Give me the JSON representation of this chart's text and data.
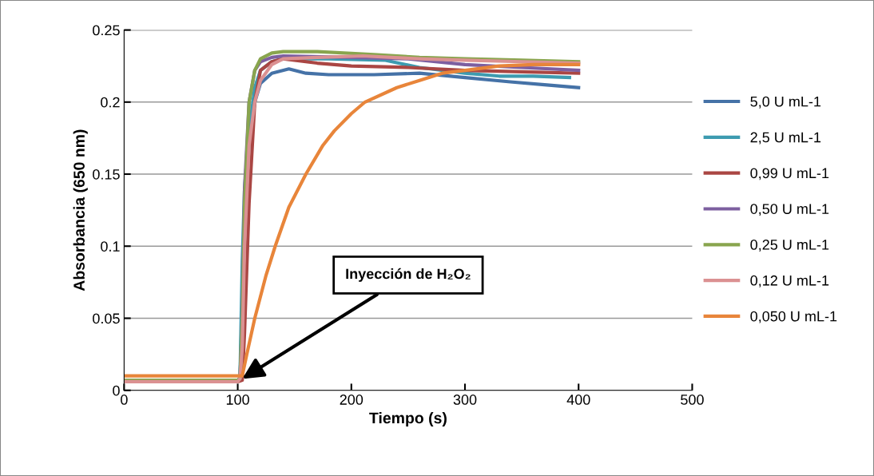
{
  "chart_data": {
    "type": "line",
    "xlabel": "Tiempo (s)",
    "ylabel": "Absorbancia (650 nm)",
    "xlim": [
      0,
      500
    ],
    "xticks": [
      0,
      100,
      200,
      300,
      400,
      500
    ],
    "ylim": [
      0,
      0.25
    ],
    "yticks": [
      0,
      0.05,
      0.1,
      0.15,
      0.2,
      0.25
    ],
    "grid": "y",
    "legend": "right",
    "marker": "none",
    "line_style": "solid",
    "annotations": [
      {
        "text": "Inyección de H₂O₂",
        "x": 104,
        "y": 0.008
      }
    ],
    "series": [
      {
        "name": "5,0 U mL-1",
        "color": "#4572a7",
        "x": [
          100,
          102,
          104,
          106,
          110,
          115,
          120,
          130,
          145,
          160,
          180,
          220,
          260,
          300,
          340,
          370,
          400
        ],
        "values": [
          0.007,
          0.008,
          0.06,
          0.12,
          0.17,
          0.2,
          0.213,
          0.22,
          0.223,
          0.22,
          0.219,
          0.219,
          0.22,
          0.217,
          0.214,
          0.212,
          0.21
        ]
      },
      {
        "name": "2,5 U mL-1",
        "color": "#3d9bb0",
        "x": [
          100,
          102,
          104,
          106,
          110,
          115,
          120,
          130,
          140,
          180,
          230,
          260,
          300,
          330,
          360,
          392
        ],
        "values": [
          0.007,
          0.008,
          0.09,
          0.14,
          0.18,
          0.21,
          0.222,
          0.228,
          0.23,
          0.23,
          0.229,
          0.224,
          0.22,
          0.218,
          0.218,
          0.217
        ]
      },
      {
        "name": "0,99 U mL-1",
        "color": "#aa4643",
        "x": [
          0,
          50,
          100,
          104,
          106,
          110,
          115,
          120,
          130,
          140,
          170,
          200,
          250,
          300,
          350,
          400
        ],
        "values": [
          0.006,
          0.006,
          0.006,
          0.007,
          0.04,
          0.13,
          0.2,
          0.222,
          0.228,
          0.23,
          0.227,
          0.225,
          0.224,
          0.222,
          0.221,
          0.22
        ]
      },
      {
        "name": "0,50 U mL-1",
        "color": "#7d5fa0",
        "x": [
          0,
          50,
          100,
          102,
          104,
          106,
          110,
          115,
          120,
          130,
          140,
          200,
          250,
          300,
          350,
          400
        ],
        "values": [
          0.007,
          0.007,
          0.007,
          0.008,
          0.05,
          0.14,
          0.2,
          0.222,
          0.228,
          0.231,
          0.232,
          0.231,
          0.23,
          0.226,
          0.224,
          0.222
        ]
      },
      {
        "name": "0,25 U mL-1",
        "color": "#89a54e",
        "x": [
          0,
          50,
          100,
          102,
          104,
          106,
          110,
          115,
          120,
          130,
          140,
          170,
          220,
          260,
          300,
          350,
          400
        ],
        "values": [
          0.007,
          0.007,
          0.007,
          0.008,
          0.05,
          0.13,
          0.2,
          0.222,
          0.23,
          0.234,
          0.235,
          0.235,
          0.233,
          0.231,
          0.23,
          0.229,
          0.228
        ]
      },
      {
        "name": "0,12 U mL-1",
        "color": "#db9192",
        "x": [
          0,
          50,
          100,
          102,
          104,
          106,
          110,
          115,
          120,
          130,
          140,
          170,
          210,
          260,
          300,
          350,
          400
        ],
        "values": [
          0.006,
          0.006,
          0.006,
          0.008,
          0.03,
          0.1,
          0.17,
          0.2,
          0.215,
          0.226,
          0.23,
          0.231,
          0.232,
          0.23,
          0.229,
          0.228,
          0.227
        ]
      },
      {
        "name": "0,050 U mL-1",
        "color": "#e8853a",
        "x": [
          0,
          50,
          100,
          104,
          108,
          115,
          125,
          133,
          145,
          160,
          175,
          185,
          200,
          212,
          240,
          260,
          280,
          300,
          330,
          360,
          400
        ],
        "values": [
          0.01,
          0.01,
          0.01,
          0.01,
          0.025,
          0.05,
          0.08,
          0.1,
          0.127,
          0.15,
          0.17,
          0.18,
          0.192,
          0.2,
          0.21,
          0.215,
          0.22,
          0.222,
          0.225,
          0.226,
          0.226
        ]
      }
    ]
  }
}
